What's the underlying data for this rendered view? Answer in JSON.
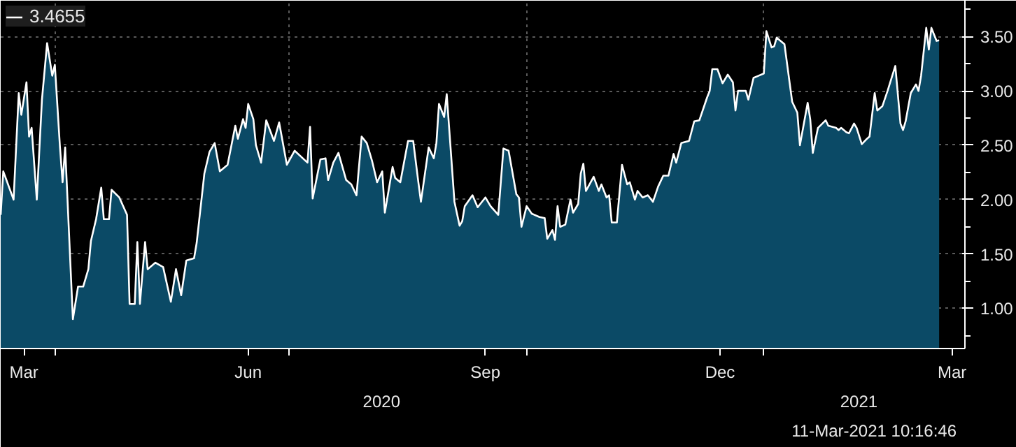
{
  "chart_data": {
    "type": "area",
    "x": [
      "2020-03-11",
      "2020-03-12",
      "2020-03-16",
      "2020-03-18",
      "2020-03-19",
      "2020-03-21",
      "2020-03-22",
      "2020-03-23",
      "2020-03-25",
      "2020-03-27",
      "2020-03-29",
      "2020-03-31",
      "2020-04-01",
      "2020-04-03",
      "2020-04-04",
      "2020-04-05",
      "2020-04-08",
      "2020-04-10",
      "2020-04-12",
      "2020-04-14",
      "2020-04-15",
      "2020-04-17",
      "2020-04-19",
      "2020-04-20",
      "2020-04-22",
      "2020-04-23",
      "2020-04-26",
      "2020-04-29",
      "2020-04-30",
      "2020-05-02",
      "2020-05-03",
      "2020-05-04",
      "2020-05-06",
      "2020-05-07",
      "2020-05-10",
      "2020-05-13",
      "2020-05-16",
      "2020-05-18",
      "2020-05-20",
      "2020-05-22",
      "2020-05-25",
      "2020-05-26",
      "2020-05-29",
      "2020-05-31",
      "2020-06-02",
      "2020-06-04",
      "2020-06-07",
      "2020-06-10",
      "2020-06-11",
      "2020-06-13",
      "2020-06-14",
      "2020-06-15",
      "2020-06-17",
      "2020-06-18",
      "2020-06-20",
      "2020-06-22",
      "2020-06-25",
      "2020-06-27",
      "2020-06-30",
      "2020-07-03",
      "2020-07-08",
      "2020-07-09",
      "2020-07-10",
      "2020-07-13",
      "2020-07-15",
      "2020-07-16",
      "2020-07-18",
      "2020-07-20",
      "2020-07-23",
      "2020-07-25",
      "2020-07-27",
      "2020-07-29",
      "2020-07-31",
      "2020-08-02",
      "2020-08-04",
      "2020-08-06",
      "2020-08-07",
      "2020-08-10",
      "2020-08-11",
      "2020-08-13",
      "2020-08-16",
      "2020-08-18",
      "2020-08-20",
      "2020-08-21",
      "2020-08-24",
      "2020-08-26",
      "2020-08-27",
      "2020-08-28",
      "2020-08-30",
      "2020-08-31",
      "2020-09-01",
      "2020-09-03",
      "2020-09-05",
      "2020-09-06",
      "2020-09-07",
      "2020-09-10",
      "2020-09-12",
      "2020-09-15",
      "2020-09-17",
      "2020-09-20",
      "2020-09-22",
      "2020-09-24",
      "2020-09-27",
      "2020-09-28",
      "2020-09-29",
      "2020-10-01",
      "2020-10-03",
      "2020-10-06",
      "2020-10-08",
      "2020-10-09",
      "2020-10-11",
      "2020-10-12",
      "2020-10-13",
      "2020-10-14",
      "2020-10-16",
      "2020-10-18",
      "2020-10-19",
      "2020-10-21",
      "2020-10-22",
      "2020-10-23",
      "2020-10-24",
      "2020-10-27",
      "2020-10-29",
      "2020-10-30",
      "2020-11-01",
      "2020-11-02",
      "2020-11-03",
      "2020-11-05",
      "2020-11-07",
      "2020-11-09",
      "2020-11-10",
      "2020-11-12",
      "2020-11-13",
      "2020-11-15",
      "2020-11-17",
      "2020-11-19",
      "2020-11-21",
      "2020-11-23",
      "2020-11-25",
      "2020-11-27",
      "2020-11-28",
      "2020-11-30",
      "2020-12-03",
      "2020-12-05",
      "2020-12-07",
      "2020-12-10",
      "2020-12-11",
      "2020-12-12",
      "2020-12-14",
      "2020-12-16",
      "2020-12-18",
      "2020-12-20",
      "2020-12-21",
      "2020-12-22",
      "2020-12-25",
      "2020-12-26",
      "2020-12-28",
      "2020-12-30",
      "2021-01-01",
      "2021-01-02",
      "2021-01-04",
      "2021-01-05",
      "2021-01-06",
      "2021-01-09",
      "2021-01-12",
      "2021-01-14",
      "2021-01-15",
      "2021-01-18",
      "2021-01-19",
      "2021-01-20",
      "2021-01-22",
      "2021-01-25",
      "2021-01-26",
      "2021-01-29",
      "2021-01-30",
      "2021-01-31",
      "2021-02-02",
      "2021-02-03",
      "2021-02-05",
      "2021-02-06",
      "2021-02-08",
      "2021-02-10",
      "2021-02-11",
      "2021-02-13",
      "2021-02-14",
      "2021-02-16",
      "2021-02-18",
      "2021-02-21",
      "2021-02-23",
      "2021-02-24",
      "2021-02-25",
      "2021-02-27",
      "2021-03-01",
      "2021-03-02",
      "2021-03-03",
      "2021-03-05",
      "2021-03-06",
      "2021-03-07",
      "2021-03-09",
      "2021-03-10"
    ],
    "series": [
      {
        "name": "3.4655",
        "color": "#ffffff",
        "values": [
          1.86,
          2.26,
          2.0,
          2.98,
          2.78,
          3.08,
          2.58,
          2.66,
          2.0,
          2.92,
          3.44,
          3.14,
          3.24,
          2.48,
          2.16,
          2.48,
          0.9,
          1.2,
          1.2,
          1.36,
          1.62,
          1.82,
          2.11,
          1.82,
          1.82,
          2.09,
          2.02,
          1.86,
          1.04,
          1.04,
          1.61,
          1.04,
          1.61,
          1.36,
          1.42,
          1.38,
          1.06,
          1.36,
          1.12,
          1.44,
          1.46,
          1.6,
          2.24,
          2.44,
          2.52,
          2.26,
          2.32,
          2.68,
          2.56,
          2.74,
          2.66,
          2.88,
          2.74,
          2.5,
          2.34,
          2.73,
          2.54,
          2.71,
          2.32,
          2.45,
          2.34,
          2.67,
          2.01,
          2.37,
          2.38,
          2.18,
          2.34,
          2.43,
          2.18,
          2.14,
          2.04,
          2.58,
          2.52,
          2.36,
          2.16,
          2.26,
          1.88,
          2.3,
          2.2,
          2.16,
          2.54,
          2.54,
          2.16,
          1.98,
          2.48,
          2.38,
          2.52,
          2.88,
          2.76,
          2.97,
          2.64,
          1.98,
          1.76,
          1.8,
          1.94,
          2.04,
          1.93,
          2.02,
          1.94,
          1.86,
          2.47,
          2.45,
          2.05,
          2.02,
          1.75,
          1.94,
          1.87,
          1.84,
          1.83,
          1.64,
          1.72,
          1.63,
          1.94,
          1.75,
          1.77,
          2.0,
          1.88,
          1.96,
          2.24,
          2.33,
          2.08,
          2.21,
          2.08,
          2.14,
          2.02,
          2.04,
          1.79,
          1.79,
          2.32,
          2.14,
          2.16,
          2.0,
          2.08,
          2.02,
          2.04,
          1.98,
          2.12,
          2.22,
          2.22,
          2.42,
          2.34,
          2.52,
          2.54,
          2.72,
          2.73,
          2.94,
          3.0,
          3.2,
          3.2,
          3.07,
          3.15,
          3.08,
          2.82,
          3.0,
          3.0,
          2.92,
          3.12,
          3.14,
          3.16,
          3.55,
          3.4,
          3.41,
          3.49,
          3.43,
          2.9,
          2.8,
          2.5,
          2.89,
          2.74,
          2.43,
          2.66,
          2.73,
          2.68,
          2.66,
          2.64,
          2.66,
          2.62,
          2.61,
          2.7,
          2.66,
          2.51,
          2.56,
          2.58,
          2.98,
          2.82,
          2.86,
          3.0,
          3.23,
          2.7,
          2.64,
          2.72,
          2.98,
          3.06,
          3.0,
          3.14,
          3.58,
          3.38,
          3.58,
          3.46,
          3.4655
        ]
      }
    ],
    "xlim": [
      "2020-03-11",
      "2021-03-20"
    ],
    "ylim": [
      0.63,
      3.83
    ],
    "xticks": [
      {
        "value": "2020-03-20",
        "label": "Mar"
      },
      {
        "value": "2020-04-01",
        "label": null
      },
      {
        "value": "2020-06-15",
        "label": "Jun"
      },
      {
        "value": "2020-07-01",
        "label": null
      },
      {
        "value": "2020-09-15",
        "label": "Sep"
      },
      {
        "value": "2020-10-01",
        "label": null
      },
      {
        "value": "2020-12-15",
        "label": "Dec"
      },
      {
        "value": "2021-01-01",
        "label": null
      },
      {
        "value": "2021-03-15",
        "label": "Mar"
      }
    ],
    "yticks": [
      {
        "value": 1.0,
        "label": "1.00"
      },
      {
        "value": 1.5,
        "label": "1.50"
      },
      {
        "value": 2.0,
        "label": "2.00"
      },
      {
        "value": 2.5,
        "label": "2.50"
      },
      {
        "value": 3.0,
        "label": "3.00"
      },
      {
        "value": 3.5,
        "label": "3.50"
      }
    ],
    "grid": true,
    "legend": "top left",
    "annotations": [
      "2020",
      "2021",
      "11-Mar-2021 10:16:46"
    ]
  }
}
